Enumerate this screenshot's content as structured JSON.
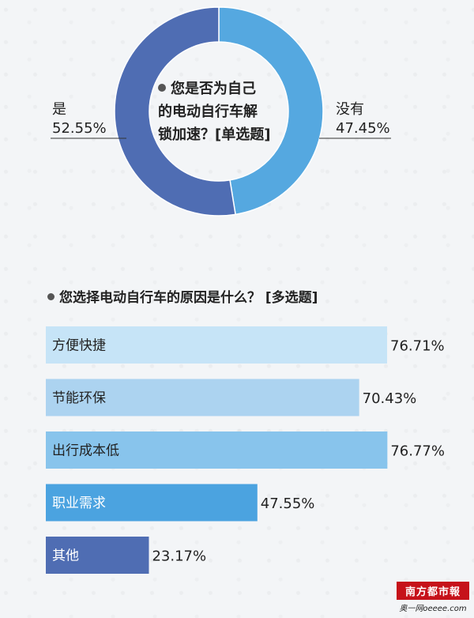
{
  "chart_data": [
    {
      "type": "pie",
      "title": "您是否为自己的电动自行车解锁加速？[单选题]",
      "title_lines": [
        "您是否为自己",
        "的电动自行车解",
        "锁加速？[单选题]"
      ],
      "slices": [
        {
          "label": "是",
          "value": 52.55,
          "display": "52.55%",
          "color": "#4f6db3"
        },
        {
          "label": "没有",
          "value": 47.45,
          "display": "47.45%",
          "color": "#55a8e0"
        }
      ]
    },
    {
      "type": "bar",
      "orientation": "horizontal",
      "title": "您选择电动自行车的原因是什么？  [多选题]",
      "categories": [
        "方便快捷",
        "节能环保",
        "出行成本低",
        "职业需求",
        "其他"
      ],
      "values": [
        76.71,
        70.43,
        76.77,
        47.55,
        23.17
      ],
      "value_labels": [
        "76.71%",
        "70.43%",
        "76.77%",
        "47.55%",
        "23.17%"
      ],
      "colors": [
        "#c6e4f7",
        "#acd3f0",
        "#88c4ec",
        "#4ba3e0",
        "#4f6db3"
      ],
      "label_colors": [
        "#222222",
        "#222222",
        "#222222",
        "#ffffff",
        "#ffffff"
      ]
    }
  ],
  "watermark": {
    "logo_text": "南方都市報",
    "sub_text": "奥一网oeeee.com"
  }
}
